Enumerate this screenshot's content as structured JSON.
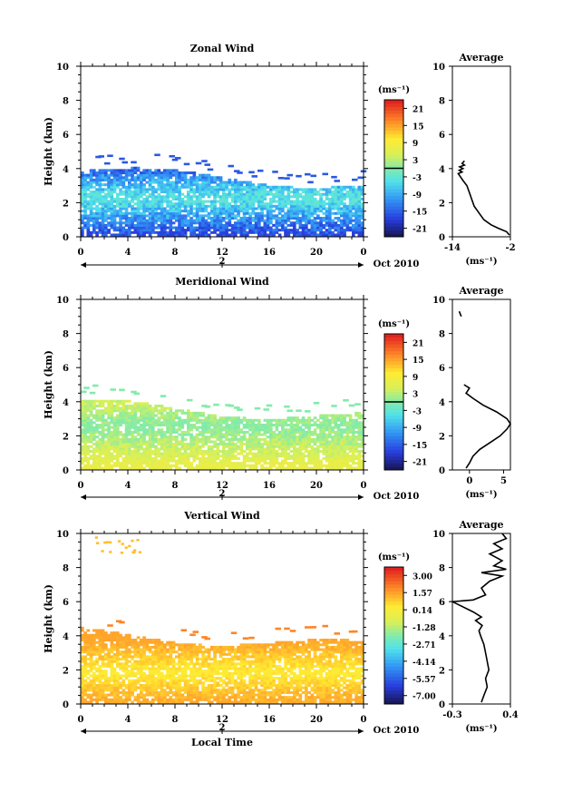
{
  "figure": {
    "xlabel": "Local Time",
    "date_label": "Oct 2010",
    "day_label": "2",
    "unit_label": "(ms⁻¹)"
  },
  "chart_data": [
    {
      "type": "heatmap",
      "title": "Zonal Wind",
      "ylabel": "Height (km)",
      "xlabel": "Local Time",
      "x_ticks": [
        "0",
        "4",
        "8",
        "12",
        "16",
        "20",
        "0"
      ],
      "xlim": [
        0,
        24
      ],
      "y_ticks": [
        "0",
        "2",
        "4",
        "6",
        "8",
        "10"
      ],
      "ylim": [
        0,
        10
      ],
      "colorbar": {
        "unit": "(ms⁻¹)",
        "ticks": [
          "21",
          "15",
          "9",
          "3",
          "-3",
          "-9",
          "-15",
          "-21"
        ],
        "range": [
          -24,
          24
        ]
      },
      "field": {
        "top_km": 4.3,
        "core_km": 2.2,
        "value_range_ms": [
          -18,
          -3
        ],
        "dominant_color": "blue"
      },
      "profile": {
        "title": "Average",
        "unit": "(ms⁻¹)",
        "x_ticks": [
          "-14",
          "-2"
        ],
        "xlim": [
          -14,
          -2
        ],
        "y_ticks": [
          "0",
          "2",
          "4",
          "6",
          "8",
          "10"
        ],
        "ylim": [
          0,
          10
        ],
        "points": [
          [
            -2.2,
            0.1
          ],
          [
            -2.8,
            0.3
          ],
          [
            -4.5,
            0.5
          ],
          [
            -6.0,
            0.7
          ],
          [
            -7.5,
            1.0
          ],
          [
            -8.5,
            1.4
          ],
          [
            -9.5,
            1.8
          ],
          [
            -10.0,
            2.2
          ],
          [
            -10.5,
            2.6
          ],
          [
            -11.0,
            3.0
          ],
          [
            -11.8,
            3.3
          ],
          [
            -12.3,
            3.5
          ],
          [
            -12.8,
            3.7
          ],
          [
            -12.0,
            3.8
          ],
          [
            -12.6,
            3.9
          ],
          [
            -11.8,
            4.0
          ],
          [
            -12.5,
            4.1
          ],
          [
            -11.5,
            4.2
          ],
          [
            -12.0,
            4.3
          ],
          [
            -11.5,
            4.45
          ]
        ]
      }
    },
    {
      "type": "heatmap",
      "title": "Meridional Wind",
      "ylabel": "Height (km)",
      "xlabel": "Local Time",
      "x_ticks": [
        "0",
        "4",
        "8",
        "12",
        "16",
        "20",
        "0"
      ],
      "xlim": [
        0,
        24
      ],
      "y_ticks": [
        "0",
        "2",
        "4",
        "6",
        "8",
        "10"
      ],
      "ylim": [
        0,
        10
      ],
      "colorbar": {
        "unit": "(ms⁻¹)",
        "ticks": [
          "21",
          "15",
          "9",
          "3",
          "-3",
          "-9",
          "-15",
          "-21"
        ],
        "range": [
          -24,
          24
        ]
      },
      "field": {
        "top_km": 4.3,
        "core_km": 2.5,
        "value_range_ms": [
          -2,
          8
        ],
        "dominant_color": "green"
      },
      "profile": {
        "title": "Average",
        "unit": "(ms⁻¹)",
        "x_ticks": [
          "0",
          "5"
        ],
        "xlim": [
          -2.5,
          6
        ],
        "y_ticks": [
          "0",
          "2",
          "4",
          "6",
          "8",
          "10"
        ],
        "ylim": [
          0,
          10
        ],
        "points": [
          [
            -0.5,
            0.1
          ],
          [
            0.0,
            0.4
          ],
          [
            0.5,
            0.8
          ],
          [
            1.5,
            1.2
          ],
          [
            3.0,
            1.6
          ],
          [
            4.5,
            2.0
          ],
          [
            5.5,
            2.4
          ],
          [
            6.0,
            2.7
          ],
          [
            5.5,
            3.0
          ],
          [
            4.0,
            3.4
          ],
          [
            2.0,
            3.8
          ],
          [
            0.5,
            4.2
          ],
          [
            -0.5,
            4.5
          ],
          [
            0.0,
            4.8
          ],
          [
            -0.8,
            5.0
          ]
        ]
      },
      "profile_extra": [
        [
          -1.2,
          9.0
        ],
        [
          -1.5,
          9.3
        ]
      ]
    },
    {
      "type": "heatmap",
      "title": "Vertical Wind",
      "ylabel": "Height (km)",
      "xlabel": "Local Time",
      "x_ticks": [
        "0",
        "4",
        "8",
        "12",
        "16",
        "20",
        "0"
      ],
      "xlim": [
        0,
        24
      ],
      "y_ticks": [
        "0",
        "2",
        "4",
        "6",
        "8",
        "10"
      ],
      "ylim": [
        0,
        10
      ],
      "colorbar": {
        "unit": "(ms⁻¹)",
        "ticks": [
          "3.00",
          "1.57",
          "0.14",
          "-1.28",
          "-2.71",
          "-4.14",
          "-5.57",
          "-7.00"
        ],
        "range": [
          -7.7,
          3.7
        ]
      },
      "field": {
        "top_km": 4.6,
        "core_km": 1.8,
        "value_range_ms": [
          0.1,
          1.6
        ],
        "dominant_color": "yellow"
      },
      "profile": {
        "title": "Average",
        "unit": "(ms⁻¹)",
        "x_ticks": [
          "-0.3",
          "0.4"
        ],
        "xlim": [
          -0.3,
          0.4
        ],
        "y_ticks": [
          "0",
          "2",
          "4",
          "6",
          "8",
          "10"
        ],
        "ylim": [
          0,
          10
        ],
        "points": [
          [
            0.05,
            0.1
          ],
          [
            0.08,
            0.5
          ],
          [
            0.12,
            1.0
          ],
          [
            0.1,
            1.5
          ],
          [
            0.14,
            2.0
          ],
          [
            0.12,
            2.5
          ],
          [
            0.1,
            3.0
          ],
          [
            0.08,
            3.5
          ],
          [
            0.04,
            4.0
          ],
          [
            0.02,
            4.3
          ],
          [
            0.06,
            4.6
          ],
          [
            -0.02,
            4.9
          ],
          [
            0.05,
            5.1
          ],
          [
            -0.05,
            5.4
          ],
          [
            -0.3,
            6.0
          ],
          [
            -0.05,
            6.1
          ],
          [
            0.1,
            6.4
          ],
          [
            0.05,
            6.8
          ],
          [
            0.15,
            7.2
          ],
          [
            0.3,
            7.5
          ],
          [
            0.05,
            7.7
          ],
          [
            0.35,
            7.9
          ],
          [
            0.2,
            8.1
          ],
          [
            0.3,
            8.4
          ],
          [
            0.15,
            8.8
          ],
          [
            0.3,
            9.1
          ],
          [
            0.2,
            9.4
          ],
          [
            0.35,
            9.7
          ],
          [
            0.3,
            10.0
          ]
        ]
      }
    }
  ]
}
